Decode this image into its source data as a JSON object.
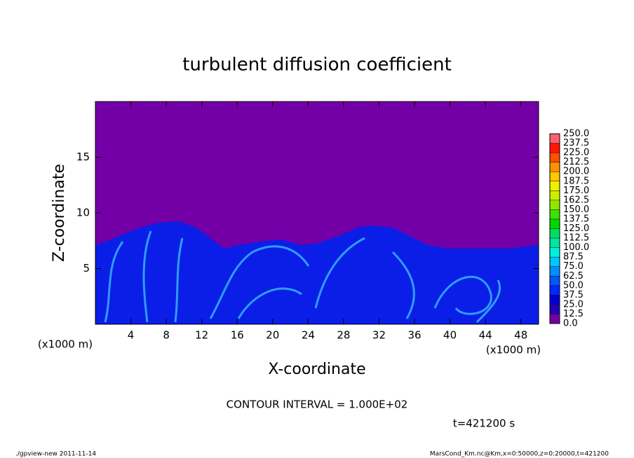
{
  "chart_data": {
    "type": "heatmap",
    "title": "turbulent diffusion coefficient",
    "xlabel": "X-coordinate",
    "ylabel": "Z-coordinate",
    "xunit": "(x1000 m)",
    "yunit": "(x1000 m)",
    "xlim": [
      0,
      50
    ],
    "ylim": [
      0,
      20
    ],
    "xticks": [
      4,
      8,
      12,
      16,
      20,
      24,
      28,
      32,
      36,
      40,
      44,
      48
    ],
    "yticks": [
      5,
      10,
      15
    ],
    "annotation": "CONTOUR INTERVAL = 1.000E+02",
    "time_label": "t=421200 s",
    "footer_left": "./gpview-new   2011-11-14",
    "footer_right": "MarsCond_Km.nc@Km,x=0:50000,z=0:20000,t=421200",
    "colorbar": {
      "levels": [
        {
          "value": 0,
          "label": "0.0"
        },
        12.5,
        {
          "value": 25,
          "label": "25.0"
        },
        37.5,
        {
          "value": 50,
          "label": "50.0"
        },
        62.5,
        {
          "value": 75,
          "label": "75.0"
        },
        87.5,
        {
          "value": 100,
          "label": "100.0"
        },
        112.5,
        {
          "value": 125,
          "label": "125.0"
        },
        137.5,
        {
          "value": 150,
          "label": "150.0"
        },
        162.5,
        {
          "value": 175,
          "label": "175.0"
        },
        187.5,
        {
          "value": 200,
          "label": "200.0"
        },
        212.5,
        {
          "value": 225,
          "label": "225.0"
        },
        237.5,
        {
          "value": 250,
          "label": "250.0"
        }
      ],
      "colors": [
        "#7300a6",
        "#2400b4",
        "#0000d2",
        "#0028ff",
        "#0058ff",
        "#0090ff",
        "#00c8ff",
        "#00f0e0",
        "#00e8a0",
        "#00e060",
        "#00d800",
        "#40e000",
        "#90e800",
        "#c8f000",
        "#f0f000",
        "#ffc800",
        "#ff9000",
        "#ff5000",
        "#ff1800",
        "#ff6070",
        "#ff9898"
      ]
    }
  }
}
